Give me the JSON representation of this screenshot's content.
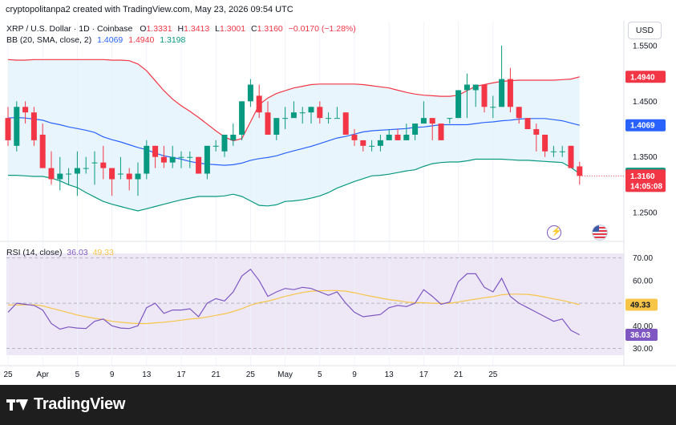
{
  "header": {
    "attribution": "cryptopolitanpa2 created with TradingView.com, May 23, 2026 09:54 UTC"
  },
  "legend": {
    "symbol": "XRP / U.S. Dollar · 1D · Coinbase",
    "o_label": "O",
    "o_value": "1.3331",
    "h_label": "H",
    "h_value": "1.3413",
    "l_label": "L",
    "l_value": "1.3001",
    "c_label": "C",
    "c_value": "1.3160",
    "change": "−0.0170 (−1.28%)",
    "bb_label": "BB (20, SMA, close, 2)",
    "bb_basis": "1.4069",
    "bb_upper": "1.4940",
    "bb_lower": "1.3198",
    "rsi_label": "RSI (14, close)",
    "rsi_value": "36.03",
    "rsi_ma": "49.33"
  },
  "currency_button": "USD",
  "colors": {
    "up": "#089981",
    "down": "#f23645",
    "basis": "#2962ff",
    "upper": "#f23645",
    "lower": "#089981",
    "band_fill": "#e3f2fd",
    "rsi": "#7e57c2",
    "rsi_ma": "#f7c548",
    "rsi_bg": "#ede7f6"
  },
  "footer": {
    "brand": "TradingView"
  },
  "icons": {
    "bolt": "bolt-icon",
    "flag": "us-flag-icon"
  },
  "chart_data": [
    {
      "type": "candlestick",
      "title": "XRP / U.S. Dollar · 1D · Coinbase",
      "x_tick_labels": [
        "25",
        "Apr",
        "5",
        "9",
        "13",
        "17",
        "21",
        "25",
        "May",
        "5",
        "9",
        "13",
        "17",
        "21",
        "25"
      ],
      "price_ticks": [
        "1.5500",
        "1.4500",
        "1.3500",
        "1.2500"
      ],
      "price_labels": {
        "upper": "1.4940",
        "basis": "1.4069",
        "lower": "1.3198",
        "last": "1.3160",
        "countdown": "14:05:08"
      },
      "ylim": [
        1.23,
        1.56
      ],
      "candles": [
        [
          1.42,
          1.44,
          1.37,
          1.38
        ],
        [
          1.37,
          1.45,
          1.36,
          1.44
        ],
        [
          1.44,
          1.45,
          1.41,
          1.43
        ],
        [
          1.43,
          1.44,
          1.37,
          1.38
        ],
        [
          1.39,
          1.41,
          1.33,
          1.33
        ],
        [
          1.33,
          1.36,
          1.3,
          1.31
        ],
        [
          1.31,
          1.35,
          1.29,
          1.32
        ],
        [
          1.32,
          1.33,
          1.3,
          1.32
        ],
        [
          1.32,
          1.36,
          1.28,
          1.33
        ],
        [
          1.33,
          1.35,
          1.32,
          1.33
        ],
        [
          1.34,
          1.36,
          1.3,
          1.34
        ],
        [
          1.34,
          1.37,
          1.31,
          1.33
        ],
        [
          1.33,
          1.33,
          1.28,
          1.31
        ],
        [
          1.32,
          1.35,
          1.31,
          1.32
        ],
        [
          1.32,
          1.33,
          1.29,
          1.31
        ],
        [
          1.31,
          1.34,
          1.28,
          1.32
        ],
        [
          1.32,
          1.38,
          1.31,
          1.37
        ],
        [
          1.37,
          1.37,
          1.33,
          1.35
        ],
        [
          1.35,
          1.37,
          1.33,
          1.34
        ],
        [
          1.34,
          1.37,
          1.33,
          1.35
        ],
        [
          1.35,
          1.36,
          1.33,
          1.35
        ],
        [
          1.35,
          1.36,
          1.33,
          1.35
        ],
        [
          1.35,
          1.35,
          1.32,
          1.32
        ],
        [
          1.32,
          1.37,
          1.31,
          1.37
        ],
        [
          1.37,
          1.38,
          1.36,
          1.37
        ],
        [
          1.36,
          1.39,
          1.35,
          1.39
        ],
        [
          1.38,
          1.41,
          1.37,
          1.39
        ],
        [
          1.39,
          1.45,
          1.38,
          1.45
        ],
        [
          1.45,
          1.49,
          1.44,
          1.48
        ],
        [
          1.46,
          1.48,
          1.42,
          1.43
        ],
        [
          1.43,
          1.45,
          1.39,
          1.39
        ],
        [
          1.39,
          1.42,
          1.38,
          1.42
        ],
        [
          1.42,
          1.44,
          1.4,
          1.42
        ],
        [
          1.42,
          1.45,
          1.42,
          1.43
        ],
        [
          1.43,
          1.44,
          1.41,
          1.43
        ],
        [
          1.43,
          1.44,
          1.41,
          1.44
        ],
        [
          1.44,
          1.45,
          1.41,
          1.42
        ],
        [
          1.42,
          1.43,
          1.41,
          1.42
        ],
        [
          1.42,
          1.44,
          1.42,
          1.42
        ],
        [
          1.43,
          1.43,
          1.39,
          1.39
        ],
        [
          1.39,
          1.4,
          1.37,
          1.38
        ],
        [
          1.38,
          1.38,
          1.36,
          1.37
        ],
        [
          1.37,
          1.38,
          1.36,
          1.37
        ],
        [
          1.37,
          1.39,
          1.36,
          1.38
        ],
        [
          1.38,
          1.4,
          1.38,
          1.39
        ],
        [
          1.39,
          1.4,
          1.38,
          1.38
        ],
        [
          1.38,
          1.41,
          1.38,
          1.39
        ],
        [
          1.39,
          1.41,
          1.38,
          1.41
        ],
        [
          1.41,
          1.45,
          1.41,
          1.42
        ],
        [
          1.42,
          1.42,
          1.38,
          1.41
        ],
        [
          1.41,
          1.41,
          1.38,
          1.38
        ],
        [
          1.42,
          1.42,
          1.41,
          1.42
        ],
        [
          1.42,
          1.47,
          1.42,
          1.47
        ],
        [
          1.47,
          1.5,
          1.42,
          1.48
        ],
        [
          1.47,
          1.48,
          1.44,
          1.48
        ],
        [
          1.48,
          1.48,
          1.43,
          1.44
        ],
        [
          1.44,
          1.46,
          1.42,
          1.44
        ],
        [
          1.44,
          1.55,
          1.44,
          1.49
        ],
        [
          1.49,
          1.51,
          1.43,
          1.44
        ],
        [
          1.44,
          1.44,
          1.41,
          1.42
        ],
        [
          1.42,
          1.42,
          1.4,
          1.4
        ],
        [
          1.4,
          1.41,
          1.36,
          1.39
        ],
        [
          1.39,
          1.39,
          1.35,
          1.36
        ],
        [
          1.36,
          1.37,
          1.35,
          1.36
        ],
        [
          1.36,
          1.37,
          1.35,
          1.36
        ],
        [
          1.37,
          1.37,
          1.33,
          1.33
        ],
        [
          1.3331,
          1.3413,
          1.3001,
          1.316
        ]
      ],
      "bb_upper": [
        1.525,
        1.524,
        1.524,
        1.525,
        1.525,
        1.525,
        1.525,
        1.525,
        1.525,
        1.525,
        1.525,
        1.525,
        1.524,
        1.524,
        1.523,
        1.517,
        1.505,
        1.487,
        1.469,
        1.454,
        1.442,
        1.432,
        1.421,
        1.409,
        1.397,
        1.386,
        1.379,
        1.383,
        1.413,
        1.444,
        1.456,
        1.464,
        1.469,
        1.474,
        1.477,
        1.48,
        1.481,
        1.481,
        1.481,
        1.481,
        1.481,
        1.48,
        1.478,
        1.476,
        1.474,
        1.47,
        1.466,
        1.463,
        1.461,
        1.46,
        1.459,
        1.459,
        1.461,
        1.469,
        1.477,
        1.48,
        1.483,
        1.486,
        1.487,
        1.488,
        1.488,
        1.488,
        1.488,
        1.488,
        1.489,
        1.49,
        1.494
      ],
      "bb_basis": [
        1.42,
        1.421,
        1.42,
        1.418,
        1.416,
        1.411,
        1.408,
        1.404,
        1.401,
        1.398,
        1.394,
        1.386,
        1.381,
        1.377,
        1.372,
        1.367,
        1.363,
        1.357,
        1.352,
        1.349,
        1.346,
        1.342,
        1.339,
        1.337,
        1.336,
        1.335,
        1.336,
        1.339,
        1.344,
        1.347,
        1.349,
        1.352,
        1.357,
        1.361,
        1.365,
        1.369,
        1.374,
        1.379,
        1.384,
        1.387,
        1.391,
        1.395,
        1.397,
        1.398,
        1.399,
        1.4,
        1.401,
        1.403,
        1.404,
        1.406,
        1.408,
        1.408,
        1.408,
        1.408,
        1.41,
        1.412,
        1.413,
        1.415,
        1.416,
        1.418,
        1.419,
        1.419,
        1.419,
        1.417,
        1.415,
        1.411,
        1.407
      ],
      "bb_lower": [
        1.317,
        1.317,
        1.316,
        1.315,
        1.315,
        1.312,
        1.307,
        1.3,
        1.295,
        1.286,
        1.278,
        1.27,
        1.265,
        1.261,
        1.257,
        1.253,
        1.257,
        1.261,
        1.265,
        1.269,
        1.273,
        1.276,
        1.279,
        1.279,
        1.279,
        1.28,
        1.283,
        1.279,
        1.271,
        1.263,
        1.262,
        1.264,
        1.27,
        1.271,
        1.273,
        1.276,
        1.28,
        1.286,
        1.294,
        1.3,
        1.306,
        1.311,
        1.316,
        1.317,
        1.319,
        1.322,
        1.325,
        1.327,
        1.333,
        1.338,
        1.34,
        1.341,
        1.341,
        1.343,
        1.346,
        1.346,
        1.346,
        1.346,
        1.345,
        1.344,
        1.344,
        1.343,
        1.342,
        1.341,
        1.34,
        1.331,
        1.32
      ]
    },
    {
      "type": "line",
      "title": "RSI (14, close)",
      "ylim": [
        27,
        72
      ],
      "y_ticks": [
        "70.00",
        "60.00",
        "40.00",
        "30.00"
      ],
      "levels": [
        70,
        50,
        30
      ],
      "value_labels": {
        "ma": "49.33",
        "rsi": "36.03"
      },
      "series": [
        {
          "name": "RSI",
          "values": [
            46.0,
            50.0,
            49.5,
            49.0,
            47.0,
            41.0,
            38.5,
            39.5,
            39.0,
            38.8,
            42.0,
            43.0,
            40.0,
            39.0,
            38.8,
            40.0,
            48.0,
            50.0,
            45.5,
            47.0,
            47.0,
            47.5,
            44.0,
            50.0,
            52.0,
            51.0,
            55.0,
            62.0,
            65.0,
            60.0,
            53.0,
            55.0,
            56.5,
            56.0,
            57.0,
            56.5,
            55.0,
            53.5,
            55.0,
            50.0,
            46.0,
            44.0,
            44.5,
            45.0,
            48.0,
            49.0,
            48.5,
            50.0,
            56.0,
            53.0,
            49.5,
            50.5,
            59.5,
            63.0,
            63.0,
            57.0,
            55.0,
            61.0,
            53.0,
            50.0,
            48.0,
            46.0,
            44.0,
            42.0,
            43.0,
            38.0,
            36.03
          ]
        },
        {
          "name": "RSI-based MA",
          "values": [
            49.2,
            49.2,
            49.3,
            49.3,
            48.8,
            47.8,
            46.8,
            45.8,
            44.8,
            44.0,
            43.3,
            42.8,
            42.0,
            41.6,
            41.2,
            41.0,
            41.0,
            41.3,
            41.6,
            42.0,
            42.5,
            43.0,
            43.3,
            43.9,
            44.6,
            45.3,
            46.3,
            47.6,
            49.1,
            50.2,
            50.9,
            51.9,
            53.0,
            53.9,
            54.7,
            55.3,
            55.5,
            55.6,
            55.6,
            55.3,
            54.6,
            53.8,
            53.0,
            52.3,
            51.6,
            51.1,
            50.5,
            50.2,
            50.2,
            50.0,
            49.9,
            50.0,
            50.5,
            51.2,
            51.8,
            52.4,
            52.9,
            53.7,
            54.0,
            54.0,
            53.9,
            53.4,
            52.7,
            51.9,
            51.2,
            50.3,
            49.33
          ]
        }
      ]
    }
  ]
}
